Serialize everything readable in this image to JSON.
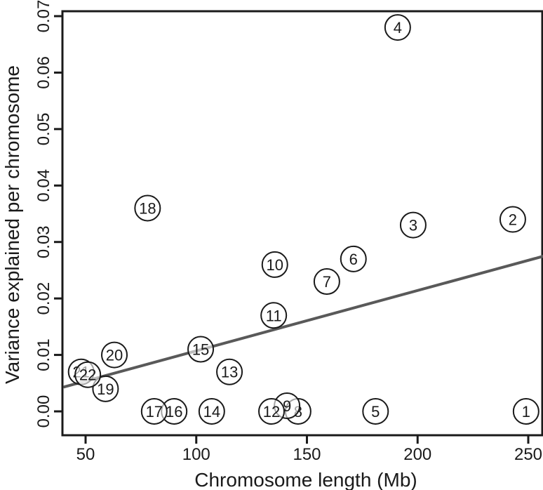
{
  "chart_data": {
    "type": "scatter",
    "title": "",
    "xlabel": "Chromosome length (Mb)",
    "ylabel": "Variance explained per chromosome",
    "xlim": [
      40,
      257
    ],
    "ylim": [
      0,
      0.071
    ],
    "x_ticks": [
      50,
      100,
      150,
      200,
      250
    ],
    "y_ticks": [
      0.0,
      0.01,
      0.02,
      0.03,
      0.04,
      0.05,
      0.06,
      0.07
    ],
    "x_tick_labels": [
      "50",
      "100",
      "150",
      "200",
      "250"
    ],
    "y_tick_labels": [
      "0.00",
      "0.01",
      "0.02",
      "0.03",
      "0.04",
      "0.05",
      "0.06",
      "0.07"
    ],
    "grid": false,
    "point_marker": "open circle with chromosome number",
    "colors": {
      "points": "#1a1a1a",
      "fit_line": "#595959",
      "axes": "#1a1a1a"
    },
    "points": [
      {
        "label": "1",
        "x": 249,
        "y": 0.0
      },
      {
        "label": "2",
        "x": 243,
        "y": 0.034
      },
      {
        "label": "3",
        "x": 198,
        "y": 0.033
      },
      {
        "label": "4",
        "x": 191,
        "y": 0.068
      },
      {
        "label": "5",
        "x": 181,
        "y": 0.0
      },
      {
        "label": "6",
        "x": 171,
        "y": 0.027
      },
      {
        "label": "7",
        "x": 159,
        "y": 0.023
      },
      {
        "label": "8",
        "x": 146,
        "y": 0.0
      },
      {
        "label": "9",
        "x": 141,
        "y": 0.001
      },
      {
        "label": "10",
        "x": 135.5,
        "y": 0.026
      },
      {
        "label": "11",
        "x": 135,
        "y": 0.017
      },
      {
        "label": "12",
        "x": 134,
        "y": 0.0
      },
      {
        "label": "13",
        "x": 115,
        "y": 0.007
      },
      {
        "label": "14",
        "x": 107,
        "y": 0.0
      },
      {
        "label": "15",
        "x": 102,
        "y": 0.011
      },
      {
        "label": "16",
        "x": 90,
        "y": 0.0
      },
      {
        "label": "17",
        "x": 81,
        "y": 0.0
      },
      {
        "label": "18",
        "x": 78,
        "y": 0.036
      },
      {
        "label": "19",
        "x": 59,
        "y": 0.004
      },
      {
        "label": "20",
        "x": 63,
        "y": 0.01
      },
      {
        "label": "21",
        "x": 48,
        "y": 0.007
      },
      {
        "label": "22",
        "x": 51,
        "y": 0.0065
      }
    ],
    "fit_line": {
      "type": "linear",
      "x": [
        40,
        257
      ],
      "y": [
        0.0043,
        0.0275
      ]
    }
  }
}
